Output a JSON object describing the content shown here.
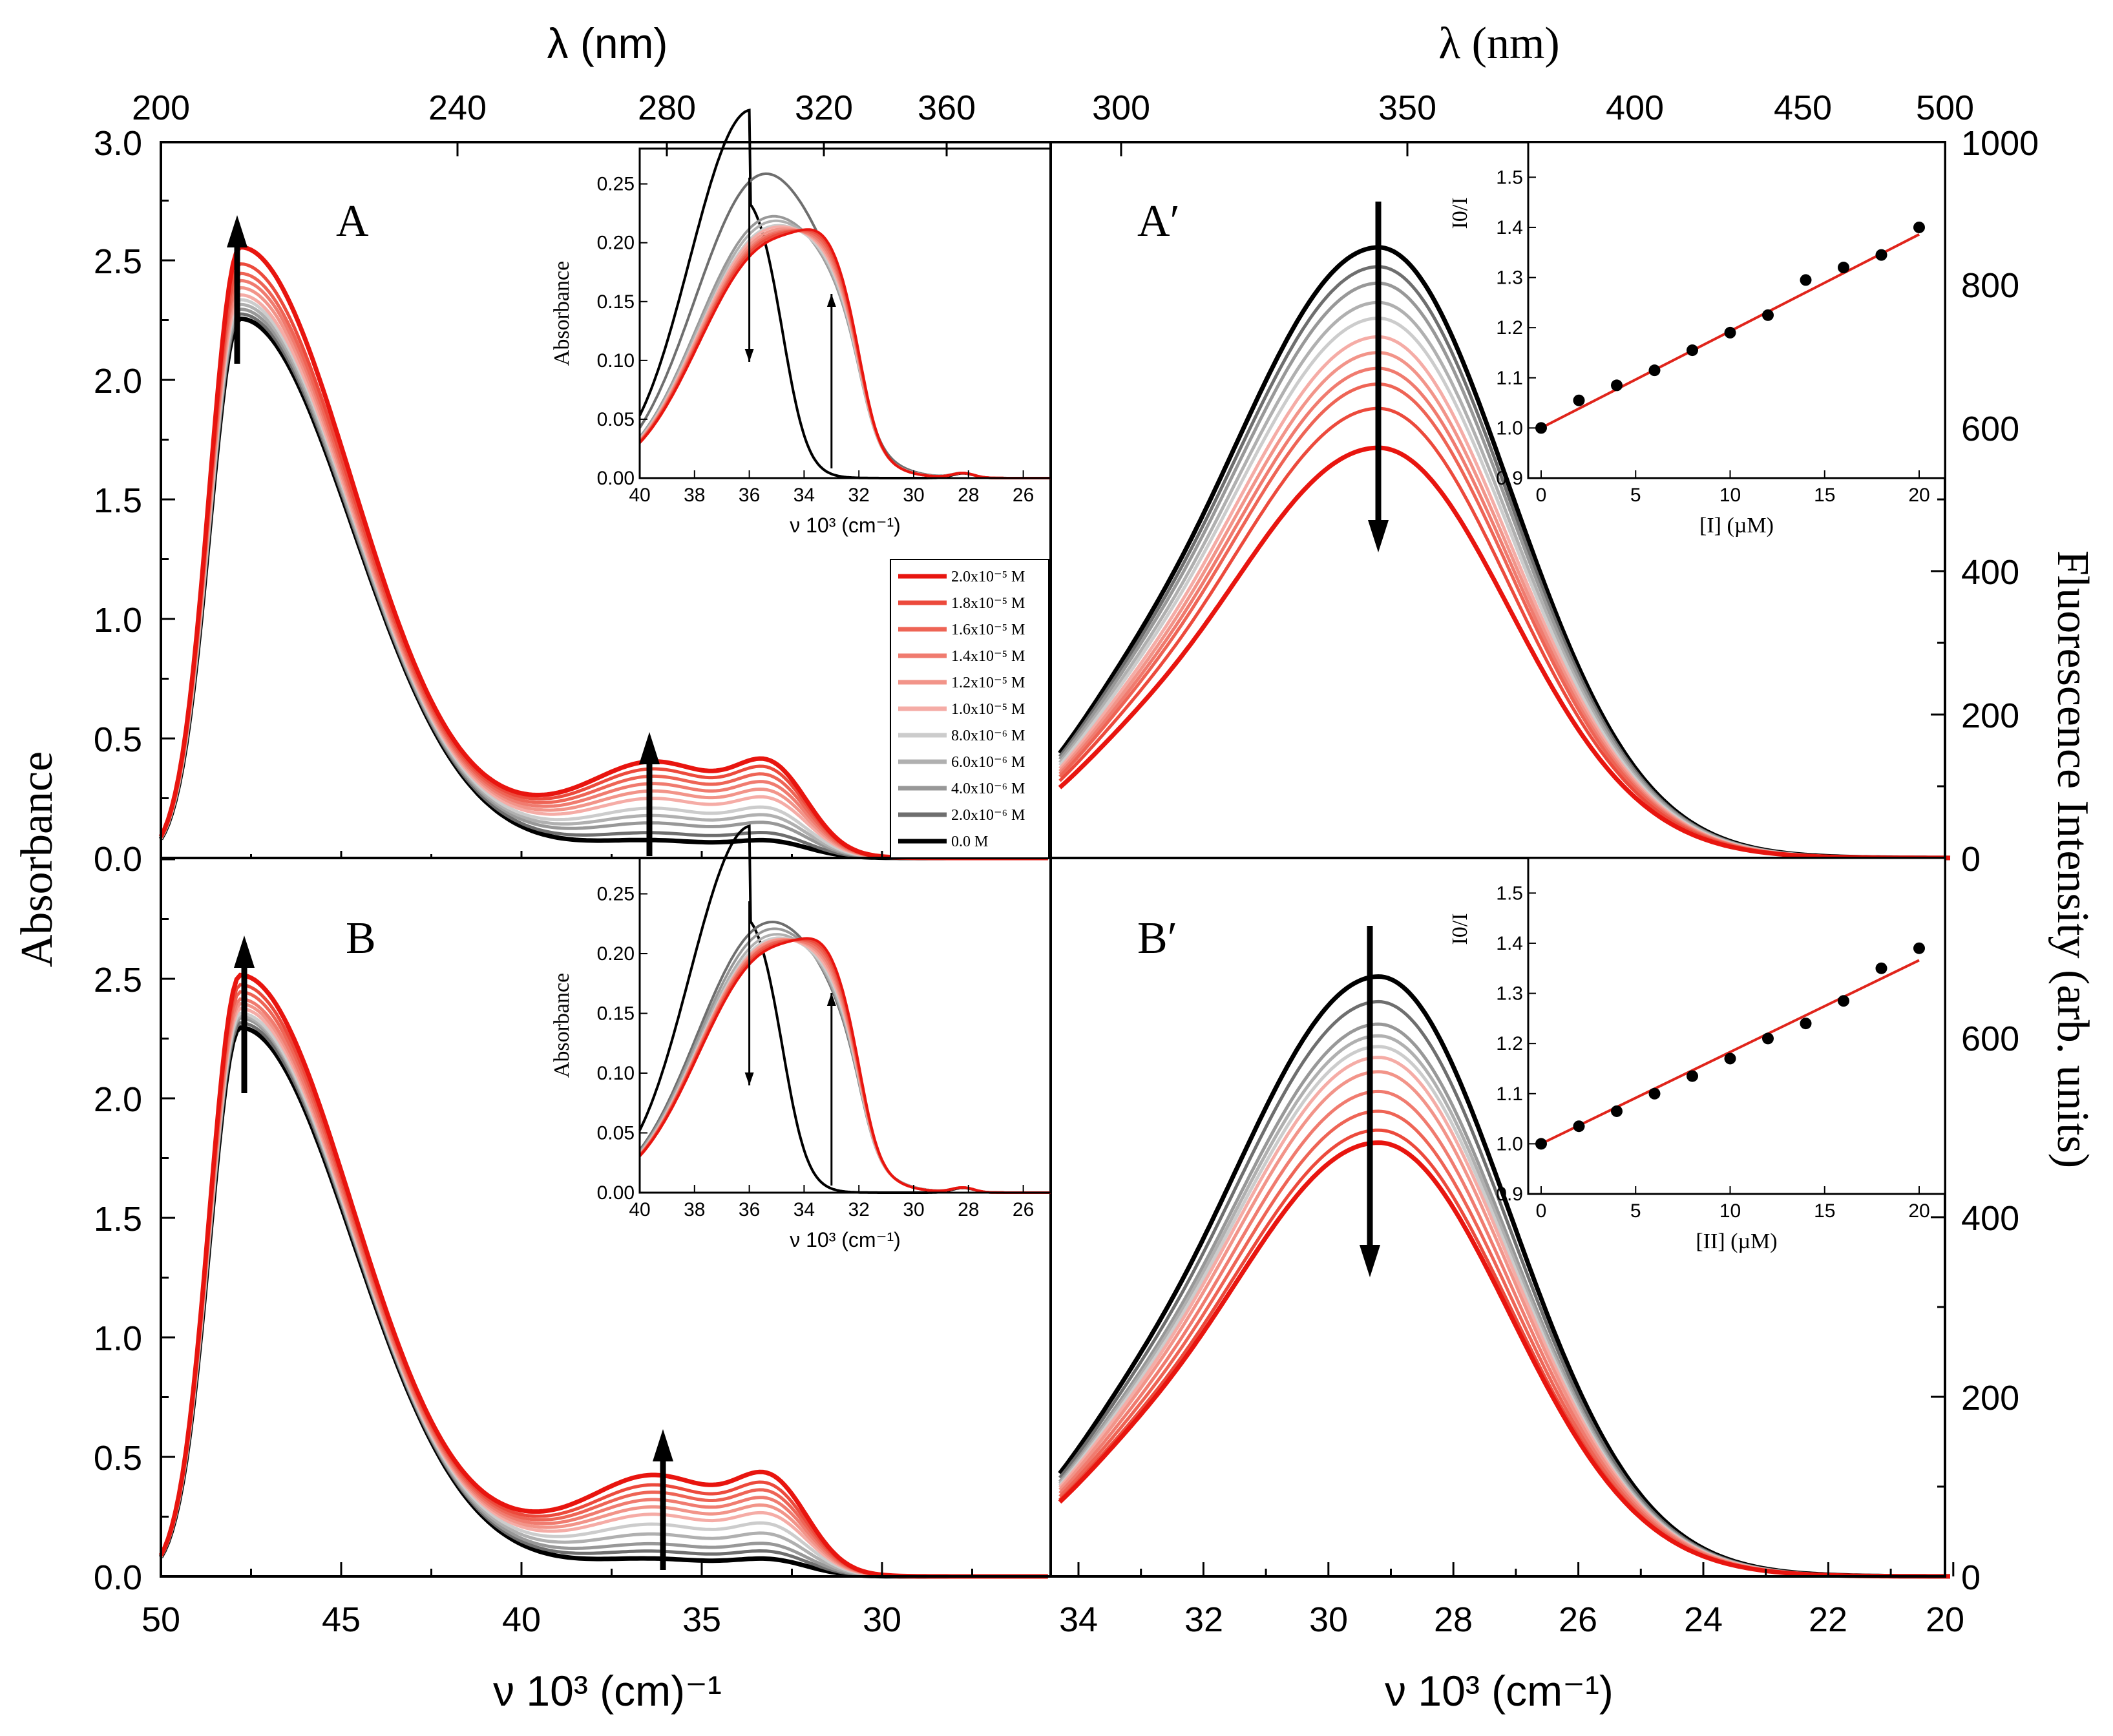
{
  "chart_data": [
    {
      "id": "A",
      "type": "line",
      "panel_label": "A",
      "xlabel": "ν 10³ (cm)⁻¹",
      "xlim": [
        50,
        25.3
      ],
      "ylabel": "Absorbance",
      "ylim": [
        0,
        3.0
      ],
      "yticks": [
        "0.0",
        "0.5",
        "1.0",
        "1.5",
        "2.0",
        "2.5",
        "3.0"
      ],
      "top_xlabel": "λ (nm)",
      "top_ticks": [
        "200",
        "240",
        "280",
        "320",
        "360"
      ],
      "series_peak_values": [
        2.56,
        2.49,
        2.45,
        2.42,
        2.39,
        2.36,
        2.34,
        2.32,
        2.3,
        2.28,
        2.26
      ],
      "band_values_at_36": [
        0.39,
        0.36,
        0.33,
        0.3,
        0.27,
        0.24,
        0.2,
        0.17,
        0.14,
        0.1,
        0.07
      ],
      "arrows": "increasing at 47.8 and 36.0"
    },
    {
      "id": "A-inset",
      "type": "line",
      "xlabel": "ν 10³ (cm⁻¹)",
      "ylabel": "Absorbance",
      "xticks": [
        "40",
        "38",
        "36",
        "34",
        "32",
        "30",
        "28",
        "26"
      ],
      "yticks": [
        "0.00",
        "0.05",
        "0.10",
        "0.15",
        "0.20",
        "0.25"
      ],
      "ylim": [
        0,
        0.28
      ],
      "peak_36_values": [
        0.248,
        0.222,
        0.18,
        0.175,
        0.17,
        0.168,
        0.165,
        0.162,
        0.16,
        0.158,
        0.155
      ]
    },
    {
      "id": "B",
      "type": "line",
      "panel_label": "B",
      "xlabel": "ν 10³ (cm)⁻¹",
      "xticks": [
        "50",
        "45",
        "40",
        "35",
        "30"
      ],
      "ylim": [
        0,
        3.0
      ],
      "yticks": [
        "0.0",
        "0.5",
        "1.0",
        "1.5",
        "2.0",
        "2.5"
      ],
      "series_peak_values": [
        2.52,
        2.48,
        2.45,
        2.42,
        2.4,
        2.38,
        2.36,
        2.35,
        2.34,
        2.32,
        2.3
      ],
      "band_values_at_36": [
        0.41,
        0.37,
        0.34,
        0.31,
        0.28,
        0.25,
        0.21,
        0.17,
        0.13,
        0.1,
        0.07
      ]
    },
    {
      "id": "B-inset",
      "type": "line",
      "xlabel": "ν 10³ (cm⁻¹)",
      "ylabel": "Absorbance",
      "xticks": [
        "40",
        "38",
        "36",
        "34",
        "32",
        "30",
        "28",
        "26"
      ],
      "yticks": [
        "0.00",
        "0.05",
        "0.10",
        "0.15",
        "0.20",
        "0.25"
      ],
      "ylim": [
        0,
        0.28
      ],
      "peak_36_values": [
        0.242,
        0.185,
        0.178,
        0.172,
        0.168,
        0.166,
        0.165,
        0.163,
        0.162,
        0.16,
        0.158
      ]
    },
    {
      "id": "A-prime",
      "type": "line",
      "panel_label": "A′",
      "xlim": [
        34.3,
        20
      ],
      "ylim": [
        0,
        1000
      ],
      "top_xlabel": "λ (nm)",
      "top_ticks": [
        "300",
        "350",
        "400",
        "450",
        "500"
      ],
      "ylabel_right": "Fluorescence Intensity (arb. units)",
      "yticks_right": [
        "0",
        "200",
        "400",
        "600",
        "800",
        "1000"
      ],
      "peak_values": [
        853,
        826,
        803,
        776,
        754,
        728,
        706,
        684,
        662,
        628,
        573
      ]
    },
    {
      "id": "A-prime-inset",
      "type": "scatter",
      "xlabel": "[I] (µM)",
      "ylabel": "I0/I",
      "xticks": [
        "0",
        "5",
        "10",
        "15",
        "20"
      ],
      "yticks": [
        "0.9",
        "1.0",
        "1.1",
        "1.2",
        "1.3",
        "1.4",
        "1.5"
      ],
      "x": [
        0,
        2,
        4,
        6,
        8,
        10,
        12,
        14,
        16,
        18,
        20
      ],
      "y": [
        1.0,
        1.055,
        1.085,
        1.115,
        1.155,
        1.19,
        1.225,
        1.295,
        1.32,
        1.345,
        1.4
      ],
      "fit": {
        "slope": 0.0193,
        "intercept": 1.0,
        "color": "#e0241b"
      }
    },
    {
      "id": "B-prime",
      "type": "line",
      "panel_label": "B′",
      "xticks": [
        "34",
        "32",
        "30",
        "28",
        "26",
        "24",
        "22",
        "20"
      ],
      "xlabel": "ν 10³ (cm⁻¹)",
      "ylim": [
        0,
        800
      ],
      "yticks_right": [
        "0",
        "200",
        "400",
        "600"
      ],
      "peak_values": [
        668,
        640,
        615,
        602,
        590,
        578,
        562,
        540,
        518,
        497,
        483
      ]
    },
    {
      "id": "B-prime-inset",
      "type": "scatter",
      "xlabel": "[II] (µM)",
      "ylabel": "I0/I",
      "xticks": [
        "0",
        "5",
        "10",
        "15",
        "20"
      ],
      "yticks": [
        "0.9",
        "1.0",
        "1.1",
        "1.2",
        "1.3",
        "1.4",
        "1.5"
      ],
      "x": [
        0,
        2,
        4,
        6,
        8,
        10,
        12,
        14,
        16,
        18,
        20
      ],
      "y": [
        1.0,
        1.035,
        1.065,
        1.1,
        1.135,
        1.17,
        1.21,
        1.24,
        1.285,
        1.35,
        1.39
      ],
      "fit": {
        "slope": 0.0183,
        "intercept": 1.0,
        "color": "#e0241b"
      }
    }
  ],
  "legend": {
    "entries": [
      "2.0x10⁻⁵ M",
      "1.8x10⁻⁵ M",
      "1.6x10⁻⁵ M",
      "1.4x10⁻⁵ M",
      "1.2x10⁻⁵ M",
      "1.0x10⁻⁵ M",
      "8.0x10⁻⁶ M",
      "6.0x10⁻⁶ M",
      "4.0x10⁻⁶ M",
      "2.0x10⁻⁶ M",
      "0.0 M"
    ],
    "colors": [
      "#e8150f",
      "#ec4a3c",
      "#ee6455",
      "#f07b6f",
      "#f29489",
      "#f5aca6",
      "#cccccc",
      "#b0b0b0",
      "#989898",
      "#6e6e6e",
      "#000000"
    ]
  },
  "labels": {
    "left_ylabel": "Absorbance",
    "right_ylabel": "Fluorescence Intensity (arb. units)",
    "bottom_left_xlabel": "ν 10³ (cm)⁻¹",
    "bottom_right_xlabel": "ν 10³ (cm⁻¹)",
    "top_left_xlabel": "λ (nm)",
    "top_right_xlabel": "λ (nm)",
    "panel_A": "A",
    "panel_B": "B",
    "panel_Ap": "A′",
    "panel_Bp": "B′",
    "inset_ylabel": "Absorbance",
    "inset_xlabel": "ν 10³ (cm⁻¹)",
    "sv_ylabel": "I0/I",
    "sv_xlabel_A": "[I] (µM)",
    "sv_xlabel_B": "[II] (µM)"
  }
}
